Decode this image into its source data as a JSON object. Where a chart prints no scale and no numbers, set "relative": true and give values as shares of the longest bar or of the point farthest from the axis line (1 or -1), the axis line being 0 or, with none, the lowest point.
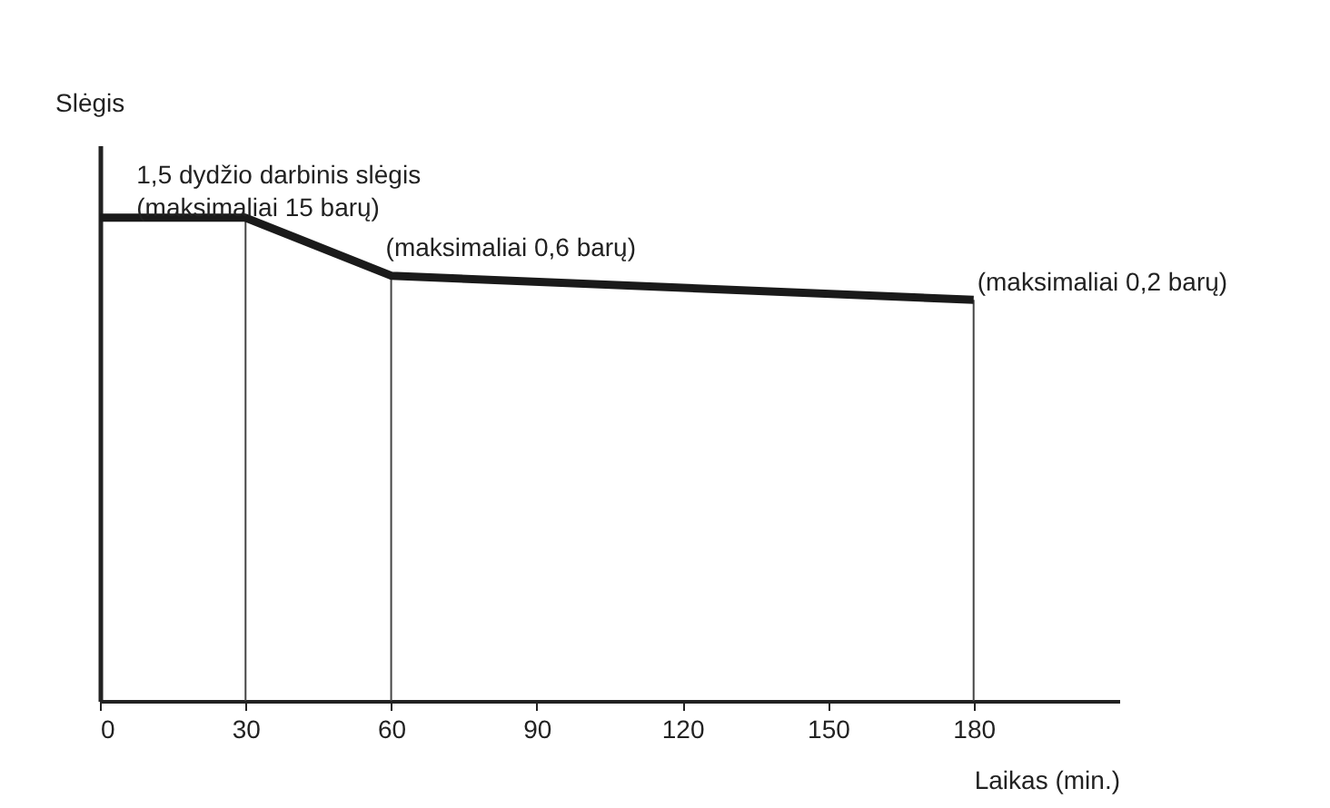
{
  "chart_data": {
    "type": "line",
    "relative": true,
    "xlabel": "Laikas (min.)",
    "ylabel": "Slėgis",
    "x": [
      0,
      30,
      60,
      180
    ],
    "xlim": [
      0,
      210
    ],
    "xticks": [
      0,
      30,
      60,
      90,
      120,
      150,
      180
    ],
    "series": [
      {
        "color": "#1a1a1a",
        "values": [
          1,
          1,
          0.88,
          0.83
        ]
      }
    ],
    "annotations": [
      {
        "text": "1,5 dydžio darbinis slėgis\n(maksimaliai 15 barų)",
        "x": 30,
        "y": 1
      },
      {
        "text": "(maksimaliai 0,6 barų)",
        "x": 60,
        "y": 0.88
      },
      {
        "text": "(maksimaliai 0,2 barų)",
        "x": 180,
        "y": 0.83
      }
    ],
    "ref_lines": [
      {
        "axis": "x",
        "value": 30,
        "color": "#444444"
      },
      {
        "axis": "x",
        "value": 60,
        "color": "#444444"
      },
      {
        "axis": "x",
        "value": 180,
        "color": "#444444"
      }
    ],
    "grid": false,
    "marker": "none",
    "line_style": "solid"
  }
}
